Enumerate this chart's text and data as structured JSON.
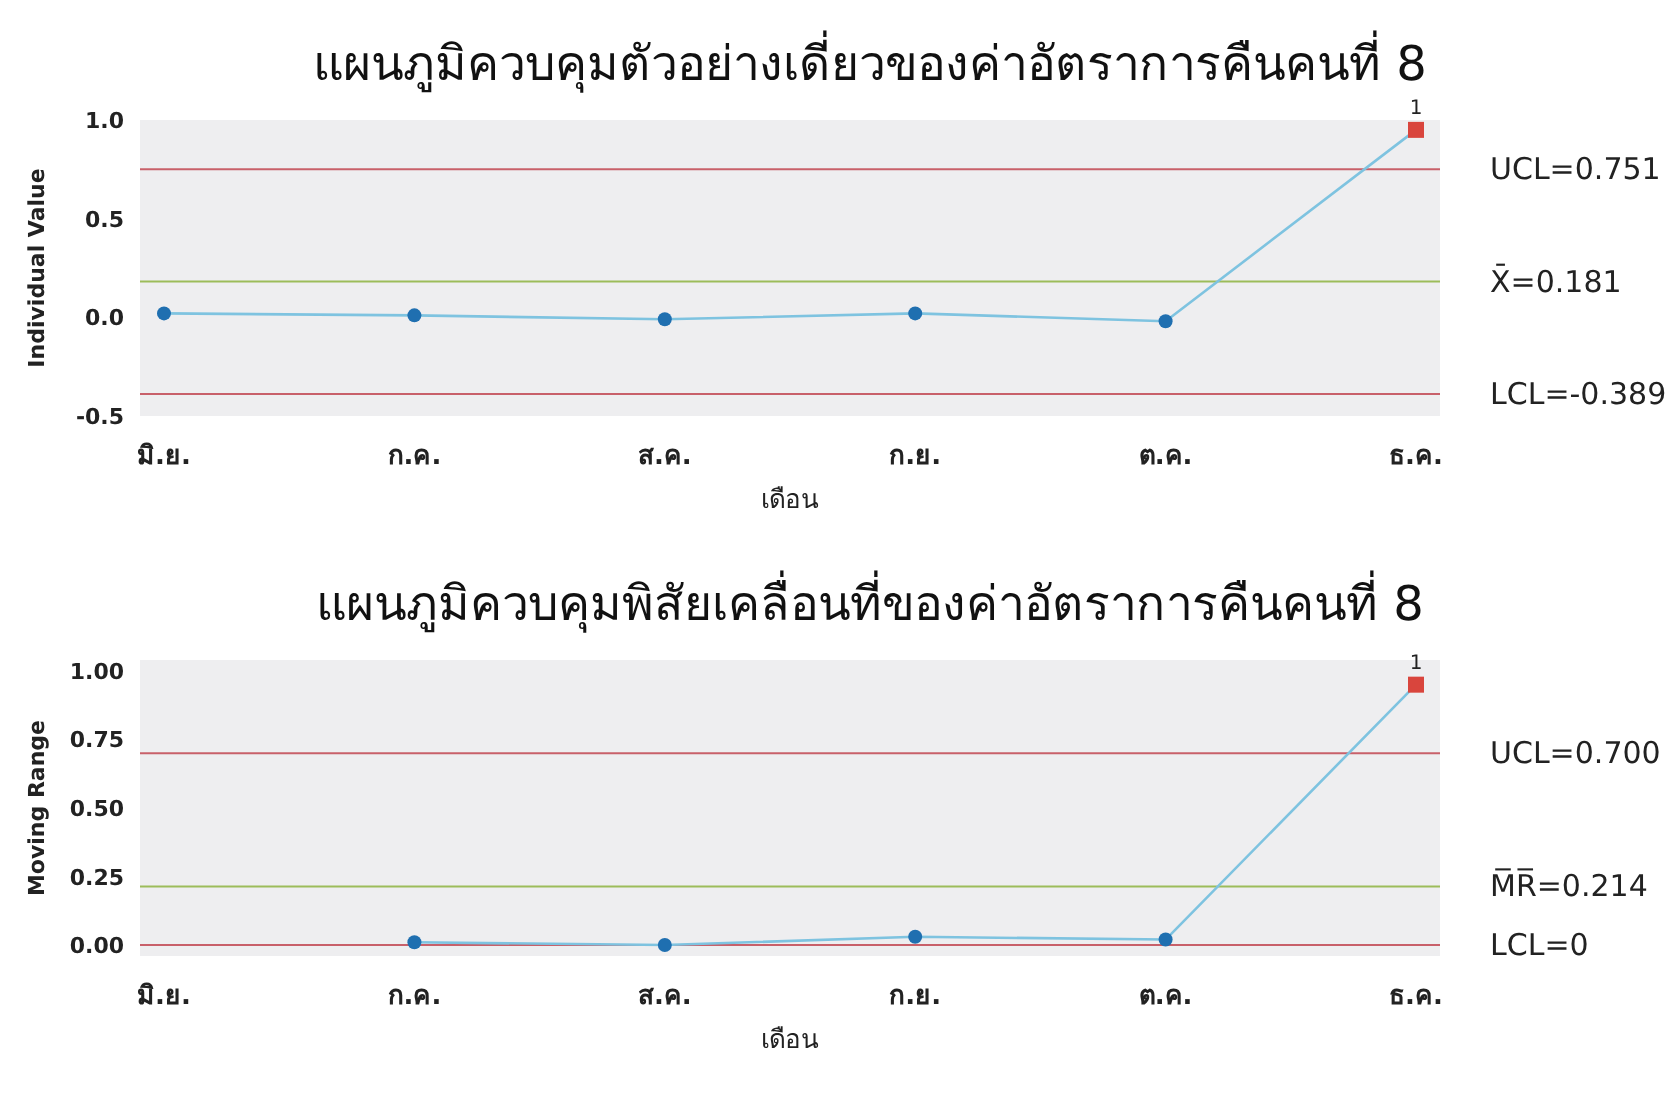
{
  "chart_data": [
    {
      "type": "line",
      "title": "แผนภูมิควบคุมตัวอย่างเดี่ยวของค่าอัตราการคืนคนที่ 8",
      "xlabel": "เดือน",
      "ylabel": "Individual Value",
      "categories": [
        "มิ.ย.",
        "ก.ค.",
        "ส.ค.",
        "ก.ย.",
        "ต.ค.",
        "ธ.ค."
      ],
      "series": [
        {
          "type": "line",
          "color": "#7ec3e0",
          "colors": [
            "#1f6fb0",
            "#1f6fb0",
            "#1f6fb0",
            "#1f6fb0",
            "#1f6fb0",
            null
          ],
          "marker": "circle",
          "values": [
            0.02,
            0.01,
            -0.01,
            0.02,
            -0.02,
            0.95
          ]
        },
        {
          "type": "scatter",
          "color": "#d9453d",
          "marker": "square",
          "values": [
            null,
            null,
            null,
            null,
            null,
            0.95
          ]
        }
      ],
      "ylim": [
        -0.5,
        1.0
      ],
      "yticks": [
        {
          "value": 1.0,
          "label": "1.0"
        },
        {
          "value": 0.5,
          "label": "0.5"
        },
        {
          "value": 0,
          "label": "0.0"
        },
        {
          "value": -0.5,
          "label": "-0.5"
        }
      ],
      "ref_lines": [
        {
          "axis": "y",
          "value": 0.751,
          "label": "UCL=0.751",
          "color": "#c8606a"
        },
        {
          "axis": "y",
          "value": 0.181,
          "label": "X̄=0.181",
          "color": "#9cbc5a"
        },
        {
          "axis": "y",
          "value": -0.389,
          "label": "LCL=-0.389",
          "color": "#c8606a"
        }
      ],
      "annotations": [
        {
          "text": "1",
          "x": "ธ.ค.",
          "y": 0.95
        }
      ]
    },
    {
      "type": "line",
      "title": "แผนภูมิควบคุมพิสัยเคลื่อนที่ของค่าอัตราการคืนคนที่ 8",
      "xlabel": "เดือน",
      "ylabel": "Moving Range",
      "categories": [
        "มิ.ย.",
        "ก.ค.",
        "ส.ค.",
        "ก.ย.",
        "ต.ค.",
        "ธ.ค."
      ],
      "series": [
        {
          "type": "line",
          "color": "#7ec3e0",
          "colors": [
            null,
            "#1f6fb0",
            "#1f6fb0",
            "#1f6fb0",
            "#1f6fb0",
            null
          ],
          "marker": "circle",
          "values": [
            null,
            0.01,
            0.0,
            0.03,
            0.02,
            0.95
          ]
        },
        {
          "type": "scatter",
          "color": "#d9453d",
          "marker": "square",
          "values": [
            null,
            null,
            null,
            null,
            null,
            0.95
          ]
        }
      ],
      "ylim": [
        -0.04,
        1.04
      ],
      "yticks": [
        {
          "value": 1.0,
          "label": "1.00"
        },
        {
          "value": 0.75,
          "label": "0.75"
        },
        {
          "value": 0.5,
          "label": "0.50"
        },
        {
          "value": 0.25,
          "label": "0.25"
        },
        {
          "value": 0,
          "label": "0.00"
        }
      ],
      "ref_lines": [
        {
          "axis": "y",
          "value": 0.7,
          "label": "UCL=0.700",
          "color": "#c8606a"
        },
        {
          "axis": "y",
          "value": 0.214,
          "label": "M̅R̅=0.214",
          "color": "#9cbc5a"
        },
        {
          "axis": "y",
          "value": 0,
          "label": "LCL=0",
          "color": "#c8606a"
        }
      ],
      "annotations": [
        {
          "text": "1",
          "x": "ธ.ค.",
          "y": 0.95
        }
      ]
    }
  ]
}
